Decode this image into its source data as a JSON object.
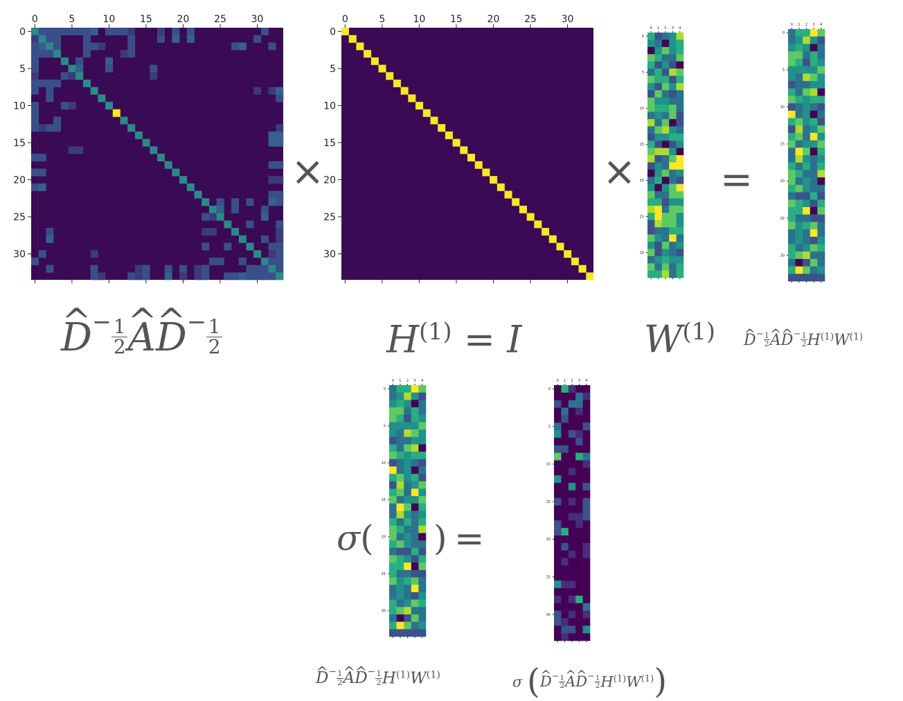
{
  "heatmaps": [
    {
      "id": "adj",
      "ticks_x": [
        "0",
        "5",
        "10",
        "15",
        "20",
        "25",
        "30"
      ],
      "ticks_y": [
        "0",
        "5",
        "10",
        "15",
        "20",
        "25",
        "30"
      ],
      "n_rows": 34,
      "n_cols": 34
    },
    {
      "id": "identity",
      "ticks_x": [
        "0",
        "5",
        "10",
        "15",
        "20",
        "25",
        "30"
      ],
      "ticks_y": [
        "0",
        "5",
        "10",
        "15",
        "20",
        "25",
        "30"
      ],
      "n_rows": 34,
      "n_cols": 34
    },
    {
      "id": "w1",
      "ticks_x": [
        "0",
        "1",
        "2",
        "3",
        "4"
      ],
      "ticks_y": [
        "0",
        "5",
        "10",
        "15",
        "20",
        "25",
        "30"
      ],
      "n_rows": 34,
      "n_cols": 5
    },
    {
      "id": "product",
      "ticks_x": [
        "0",
        "1",
        "2",
        "3",
        "4"
      ],
      "ticks_y": [
        "0",
        "5",
        "10",
        "15",
        "20",
        "25",
        "30"
      ],
      "n_rows": 34,
      "n_cols": 5
    },
    {
      "id": "pre_act",
      "ticks_x": [
        "0",
        "1",
        "2",
        "3",
        "4"
      ],
      "ticks_y": [
        "0",
        "5",
        "10",
        "15",
        "20",
        "25",
        "30"
      ],
      "n_rows": 34,
      "n_cols": 5
    },
    {
      "id": "post_act",
      "ticks_x": [
        "0",
        "1",
        "2",
        "3",
        "4"
      ],
      "ticks_y": [
        "0",
        "5",
        "10",
        "15",
        "20",
        "25",
        "30"
      ],
      "n_rows": 34,
      "n_cols": 5
    }
  ],
  "operators": {
    "times_1": "×",
    "times_2": "×",
    "equals_1": "=",
    "equals_2": "="
  },
  "labels": {
    "sigma": "σ",
    "open_paren": "(",
    "close_paren": ")",
    "D": "D",
    "A": "A",
    "minus": "−",
    "one": "1",
    "two": "2",
    "H": "H",
    "W": "W",
    "I": "I",
    "sup_1": "(1)",
    "eq": "="
  },
  "colors": {
    "viridis_low": "#440154",
    "viridis_high": "#fde725",
    "text": "#555555"
  }
}
